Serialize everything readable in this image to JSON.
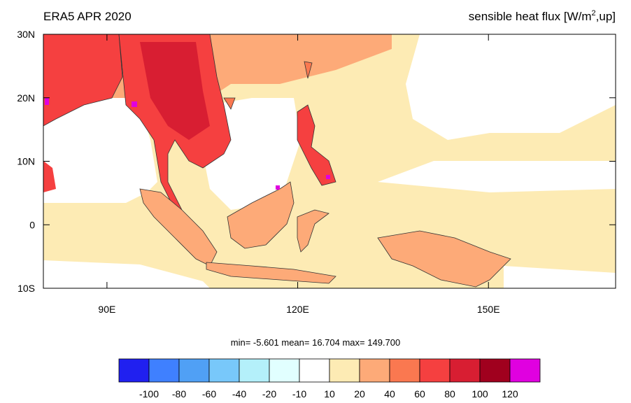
{
  "map": {
    "title": "ERA5 APR 2020",
    "subtitle": {
      "text": "sensible heat flux [W/m",
      "superscript": "2",
      "suffix": ",up]"
    },
    "xlim": [
      80,
      170
    ],
    "ylim": [
      -10,
      30
    ],
    "xticks": [
      {
        "value": 90,
        "label": "90E"
      },
      {
        "value": 120,
        "label": "120E"
      },
      {
        "value": 150,
        "label": "150E"
      }
    ],
    "yticks": [
      {
        "value": 30,
        "label": "30N"
      },
      {
        "value": 20,
        "label": "20N"
      },
      {
        "value": 10,
        "label": "10N"
      },
      {
        "value": 0,
        "label": "0"
      },
      {
        "value": -10,
        "label": "10S"
      }
    ],
    "stats": "min=  -5.601   mean=  16.704   max= 149.700",
    "colorbar": {
      "colors": [
        "#2020f0",
        "#3f80ff",
        "#50a0f5",
        "#78c8fa",
        "#b4f0fa",
        "#e1ffff",
        "#ffffff",
        "#fdebb4",
        "#fdaa78",
        "#fa7850",
        "#f54040",
        "#d81e32",
        "#a0001e",
        "#e000e0"
      ],
      "levels": [
        -100,
        -80,
        -60,
        -40,
        -20,
        -10,
        10,
        20,
        40,
        60,
        80,
        100,
        120
      ]
    }
  }
}
